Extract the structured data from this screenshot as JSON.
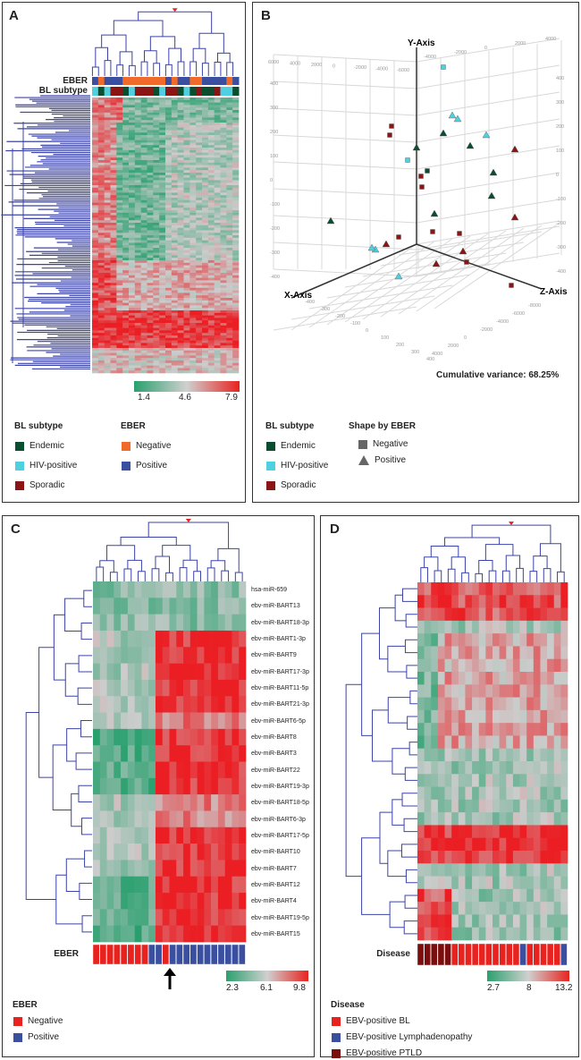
{
  "panelA": {
    "label": "A",
    "row_labels": {
      "eber": "EBER",
      "subtype": "BL subtype"
    },
    "colorbar": {
      "min": "1.4",
      "mid": "4.6",
      "max": "7.9"
    },
    "legend_subtype": {
      "title": "BL subtype",
      "items": [
        {
          "label": "Endemic",
          "color": "#0b4d2f"
        },
        {
          "label": "HIV-positive",
          "color": "#4fd0e0"
        },
        {
          "label": "Sporadic",
          "color": "#8b1414"
        }
      ]
    },
    "legend_eber": {
      "title": "EBER",
      "items": [
        {
          "label": "Negative",
          "color": "#f06a2a"
        },
        {
          "label": "Positive",
          "color": "#3a4fa0"
        }
      ]
    }
  },
  "panelB": {
    "label": "B",
    "axis_labels": {
      "x": "X-Axis",
      "y": "Y-Axis",
      "z": "Z-Axis"
    },
    "top_ticks": [
      "6000",
      "4000",
      "2000",
      "0",
      "-2000",
      "-4000",
      "-6000"
    ],
    "top_right_ticks": [
      "-4000",
      "-2000",
      "0",
      "2000",
      "4000"
    ],
    "vertical_ticks": [
      "400",
      "300",
      "200",
      "100",
      "0",
      "-100",
      "-200",
      "-300",
      "-400"
    ],
    "bottom_ticks_x": [
      "-400",
      "-300",
      "-200",
      "-100",
      "0",
      "100",
      "200",
      "300",
      "400"
    ],
    "bottom_ticks_z": [
      "-8000",
      "-6000",
      "-4000",
      "-2000",
      "0",
      "2000",
      "4000"
    ],
    "variance_text": "Cumulative variance: 68.25%",
    "legend_subtype": {
      "title": "BL subtype",
      "items": [
        {
          "label": "Endemic",
          "color": "#0b4d2f"
        },
        {
          "label": "HIV-positive",
          "color": "#4fd0e0"
        },
        {
          "label": "Sporadic",
          "color": "#8b1414"
        }
      ]
    },
    "legend_shape": {
      "title": "Shape by EBER",
      "items": [
        {
          "label": "Negative",
          "shape": "square"
        },
        {
          "label": "Positive",
          "shape": "triangle"
        }
      ]
    }
  },
  "panelC": {
    "label": "C",
    "mirnas": [
      "hsa-miR-659",
      "ebv-miR-BART13",
      "ebv-miR-BART18-3p",
      "ebv-miR-BART1-3p",
      "ebv-miR-BART9",
      "ebv-miR-BART17-3p",
      "ebv-miR-BART11-5p",
      "ebv-miR-BART21-3p",
      "ebv-miR-BART6-5p",
      "ebv-miR-BART8",
      "ebv-miR-BART3",
      "ebv-miR-BART22",
      "ebv-miR-BART19-3p",
      "ebv-miR-BART18-5p",
      "ebv-miR-BART6-3p",
      "ebv-miR-BART17-5p",
      "ebv-miR-BART10",
      "ebv-miR-BART7",
      "ebv-miR-BART12",
      "ebv-miR-BART4",
      "ebv-miR-BART19-5p",
      "ebv-miR-BART15"
    ],
    "bar_label": "EBER",
    "colorbar": {
      "min": "2.3",
      "mid": "6.1",
      "max": "9.8"
    },
    "legend": {
      "title": "EBER",
      "items": [
        {
          "label": "Negative",
          "color": "#e8231f"
        },
        {
          "label": "Positive",
          "color": "#3a4fa0"
        }
      ]
    }
  },
  "panelD": {
    "label": "D",
    "bar_label": "Disease",
    "colorbar": {
      "min": "2.7",
      "mid": "8",
      "max": "13.2"
    },
    "legend": {
      "title": "Disease",
      "items": [
        {
          "label": "EBV-positive BL",
          "color": "#e8231f"
        },
        {
          "label": "EBV-positive Lymphadenopathy",
          "color": "#3a4fa0"
        },
        {
          "label": "EBV-positive PTLD",
          "color": "#7a0e0e"
        }
      ]
    }
  }
}
